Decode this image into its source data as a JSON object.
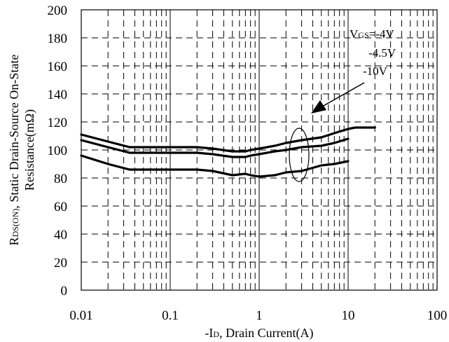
{
  "chart_data": {
    "type": "line",
    "x_scale": "log",
    "xlim": [
      0.01,
      100
    ],
    "ylim": [
      0,
      200
    ],
    "x_ticks": [
      "0.01",
      "0.1",
      "1",
      "10",
      "100"
    ],
    "y_ticks": [
      "0",
      "20",
      "40",
      "60",
      "80",
      "100",
      "120",
      "140",
      "160",
      "180",
      "200"
    ],
    "xlabel": {
      "prefix": "-I",
      "sub": "D",
      "rest": ", Drain Current(A)"
    },
    "ylabel": {
      "line1_prefix": "R",
      "line1_sub": "DS(ON)",
      "line1_rest": ", Static Drain-Source On-State",
      "line2": "Resistance(mΩ)"
    },
    "legend": {
      "prefix": "V",
      "sub": "GS",
      "first": "=-4V",
      "second": "-4.5V",
      "third": "-10V",
      "placement": "top-right"
    },
    "grid": true,
    "series": [
      {
        "x": [
          0.01,
          0.02,
          0.035,
          0.05,
          0.1,
          0.2,
          0.3,
          0.5,
          0.7,
          0.8,
          1.0,
          1.5,
          2.0,
          3.0,
          5.0,
          7.0,
          10,
          12,
          20
        ],
        "y": [
          111,
          106,
          102,
          102,
          102,
          102,
          101,
          99,
          99,
          100,
          101,
          103,
          105,
          107,
          109,
          112,
          115,
          116,
          116
        ]
      },
      {
        "x": [
          0.01,
          0.02,
          0.035,
          0.05,
          0.1,
          0.2,
          0.3,
          0.5,
          0.7,
          0.8,
          1.0,
          1.5,
          2.0,
          3.0,
          5.0,
          7.0,
          10
        ],
        "y": [
          107,
          102,
          98,
          98,
          98,
          98,
          97,
          95,
          95,
          96,
          97,
          99,
          100,
          102,
          103,
          105,
          108
        ]
      },
      {
        "x": [
          0.01,
          0.02,
          0.035,
          0.05,
          0.1,
          0.2,
          0.3,
          0.5,
          0.7,
          0.8,
          1.0,
          1.5,
          2.0,
          3.0,
          5.0,
          7.0,
          10
        ],
        "y": [
          96,
          90,
          86,
          86,
          86,
          86,
          85,
          82,
          83,
          82,
          81,
          82,
          84,
          85,
          89,
          90,
          92
        ]
      }
    ]
  }
}
